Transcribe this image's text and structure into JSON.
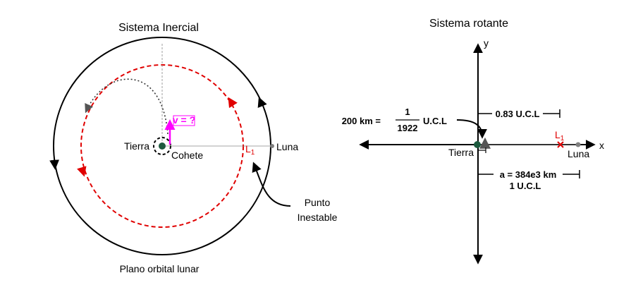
{
  "inertial": {
    "title": "Sistema Inercial",
    "earth_label": "Tierra",
    "rocket_label": "Cohete",
    "velocity_label": "v = ?",
    "l1_letter": "L",
    "l1_sub": "1",
    "moon_label": "Luna",
    "unstable_line1": "Punto",
    "unstable_line2": "Inestable",
    "plane_label": "Plano orbital lunar"
  },
  "rotating": {
    "title": "Sistema rotante",
    "y_axis": "y",
    "x_axis": "x",
    "altitude_lhs": "200 km =",
    "frac_num": "1",
    "frac_den": "1922",
    "frac_unit": "U.C.L",
    "l1_distance": "0.83 U.C.L",
    "l1_letter": "L",
    "l1_sub": "1",
    "moon_label": "Luna",
    "earth_label": "Tierra",
    "semi_major": "a = 384e3 km",
    "semi_major_unit": "1 U.C.L"
  },
  "colors": {
    "earth": "#1d5a3e",
    "red": "#e00000",
    "magenta": "#ff00ff",
    "gray": "#808080"
  }
}
